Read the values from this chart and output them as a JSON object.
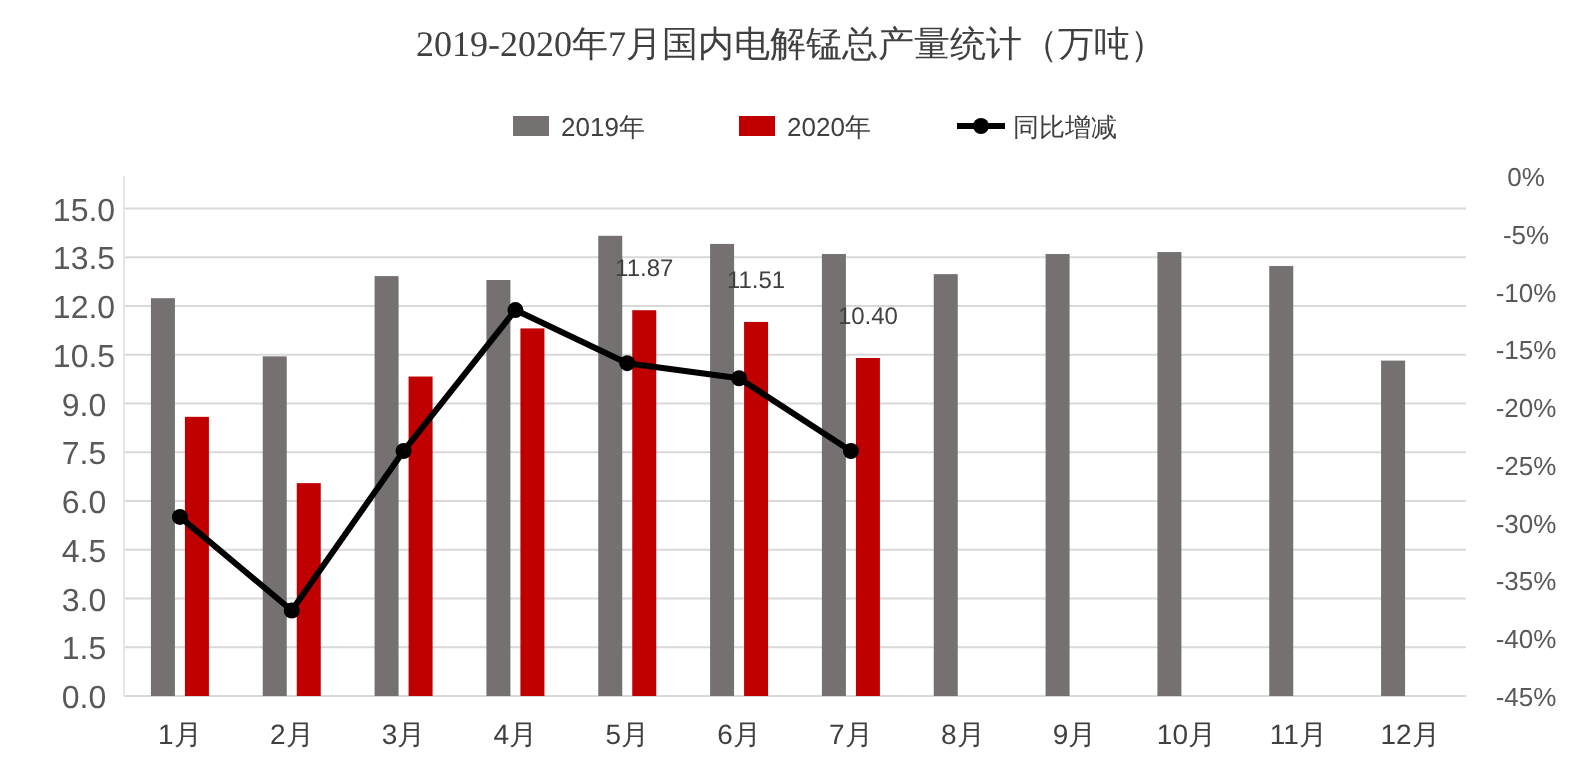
{
  "chart_data": {
    "type": "bar",
    "title": "2019-2020年7月国内电解锰总产量统计（万吨）",
    "categories": [
      "1月",
      "2月",
      "3月",
      "4月",
      "5月",
      "6月",
      "7月",
      "8月",
      "9月",
      "10月",
      "11月",
      "12月"
    ],
    "series": [
      {
        "name": "2019年",
        "color": "#767171",
        "values": [
          12.24,
          10.45,
          12.92,
          12.8,
          14.16,
          13.91,
          13.6,
          12.98,
          13.6,
          13.66,
          13.23,
          10.32
        ]
      },
      {
        "name": "2020年",
        "color": "#c00000",
        "values": [
          8.59,
          6.55,
          9.83,
          11.31,
          11.87,
          11.51,
          10.4,
          null,
          null,
          null,
          null,
          null
        ],
        "value_labels": [
          null,
          null,
          null,
          null,
          "11.87",
          "11.51",
          "10.40",
          null,
          null,
          null,
          null,
          null
        ]
      },
      {
        "name": "同比增减",
        "type": "line",
        "axis": "y2",
        "color": "#000000",
        "marker": "circle",
        "values": [
          -29.5,
          -37.6,
          -23.8,
          -11.6,
          -16.2,
          -17.5,
          -23.8,
          null,
          null,
          null,
          null,
          null
        ]
      }
    ],
    "ylim": [
      0,
      16
    ],
    "yticks": [
      {
        "value": 0,
        "label": "0.0"
      },
      {
        "value": 1.5,
        "label": "1.5"
      },
      {
        "value": 3,
        "label": "3.0"
      },
      {
        "value": 4.5,
        "label": "4.5"
      },
      {
        "value": 6,
        "label": "6.0"
      },
      {
        "value": 7.5,
        "label": "7.5"
      },
      {
        "value": 9,
        "label": "9.0"
      },
      {
        "value": 10.5,
        "label": "10.5"
      },
      {
        "value": 12,
        "label": "12.0"
      },
      {
        "value": 13.5,
        "label": "13.5"
      },
      {
        "value": 15,
        "label": "15.0"
      }
    ],
    "y2lim": [
      -45,
      0
    ],
    "y2ticks": [
      {
        "value": 0,
        "label": "0%"
      },
      {
        "value": -5,
        "label": "-5%"
      },
      {
        "value": -10,
        "label": "-10%"
      },
      {
        "value": -15,
        "label": "-15%"
      },
      {
        "value": -20,
        "label": "-20%"
      },
      {
        "value": -25,
        "label": "-25%"
      },
      {
        "value": -30,
        "label": "-30%"
      },
      {
        "value": -35,
        "label": "-35%"
      },
      {
        "value": -40,
        "label": "-40%"
      },
      {
        "value": -45,
        "label": "-45%"
      }
    ],
    "grid": "y",
    "legend": "top"
  }
}
